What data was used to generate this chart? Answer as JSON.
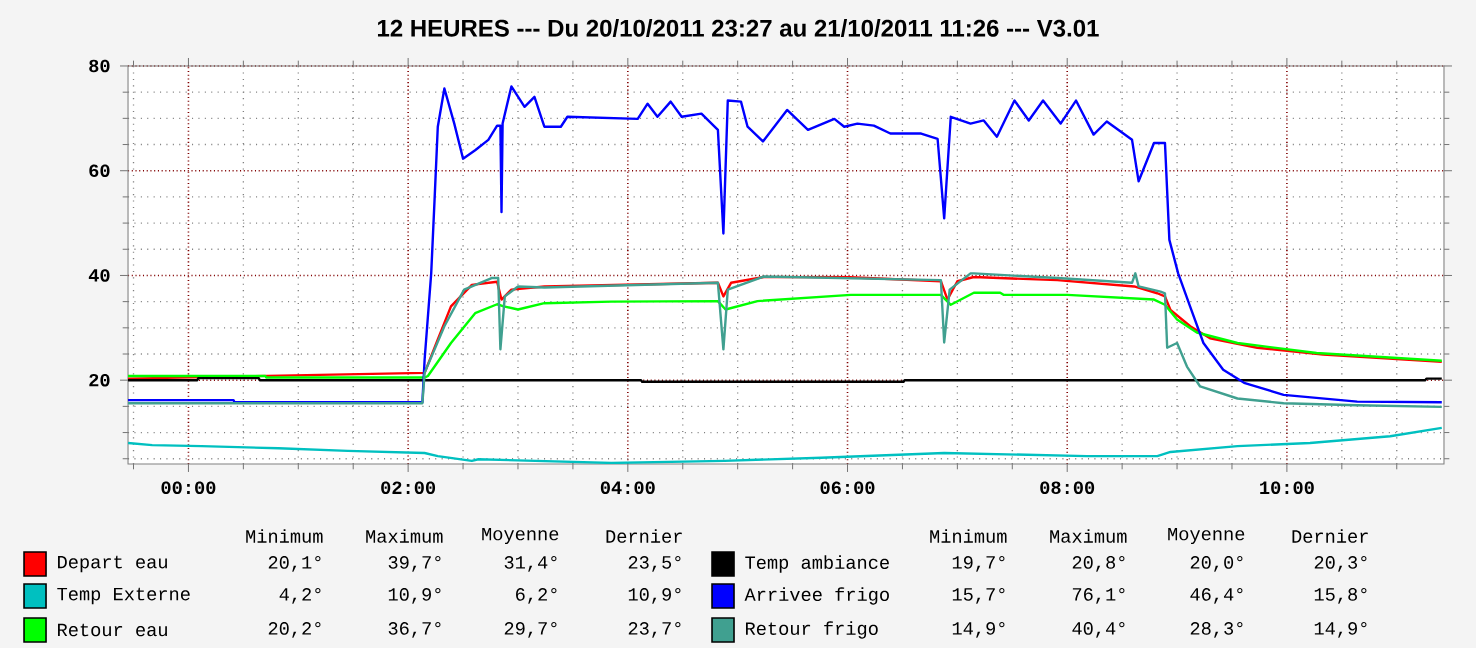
{
  "chart_data": {
    "type": "line",
    "title": "12 HEURES --- Du 20/10/2011 23:27 au 21/10/2011 11:26 --- V3.01",
    "xlim": [
      -0.55,
      11.43
    ],
    "ylim": [
      4,
      80
    ],
    "xticks": [
      {
        "value": -0.5,
        "label": null
      },
      {
        "value": 0,
        "label": "00:00"
      },
      {
        "value": 0.5,
        "label": null
      },
      {
        "value": 1,
        "label": null
      },
      {
        "value": 1.5,
        "label": null
      },
      {
        "value": 2,
        "label": "02:00"
      },
      {
        "value": 2.5,
        "label": null
      },
      {
        "value": 3,
        "label": null
      },
      {
        "value": 3.5,
        "label": null
      },
      {
        "value": 4,
        "label": "04:00"
      },
      {
        "value": 4.5,
        "label": null
      },
      {
        "value": 5,
        "label": null
      },
      {
        "value": 5.5,
        "label": null
      },
      {
        "value": 6,
        "label": "06:00"
      },
      {
        "value": 6.5,
        "label": null
      },
      {
        "value": 7,
        "label": null
      },
      {
        "value": 7.5,
        "label": null
      },
      {
        "value": 8,
        "label": "08:00"
      },
      {
        "value": 8.5,
        "label": null
      },
      {
        "value": 9,
        "label": null
      },
      {
        "value": 9.5,
        "label": null
      },
      {
        "value": 10,
        "label": "10:00"
      },
      {
        "value": 10.5,
        "label": null
      },
      {
        "value": 11,
        "label": null
      }
    ],
    "yticks": [
      {
        "value": 5,
        "label": null
      },
      {
        "value": 10,
        "label": null
      },
      {
        "value": 15,
        "label": null
      },
      20,
      {
        "value": 25,
        "label": null
      },
      {
        "value": 30,
        "label": null
      },
      {
        "value": 35,
        "label": null
      },
      40,
      {
        "value": 45,
        "label": null
      },
      {
        "value": 50,
        "label": null
      },
      {
        "value": 55,
        "label": null
      },
      60,
      {
        "value": 65,
        "label": null
      },
      {
        "value": 70,
        "label": null
      },
      {
        "value": 75,
        "label": null
      },
      80
    ],
    "grid": true,
    "legend": "bottom",
    "line_style": "solid",
    "marker": "none",
    "series": [
      {
        "name": "Depart eau",
        "color": "#ff0000",
        "x": [
          -0.55,
          2.13,
          2.15,
          2.27,
          2.39,
          2.58,
          2.81,
          2.85,
          2.94,
          3.24,
          4.82,
          4.87,
          4.94,
          5.24,
          5.97,
          6.85,
          6.91,
          7.0,
          7.15,
          7.91,
          8.61,
          8.82,
          8.89,
          8.94,
          9.12,
          9.3,
          9.73,
          10.33,
          11.41
        ],
        "values": [
          20.3,
          null,
          21.4,
          27.8,
          34.1,
          38.2,
          38.8,
          35.4,
          37.3,
          37.9,
          38.6,
          36.0,
          38.6,
          39.7,
          39.7,
          38.9,
          35.4,
          38.9,
          39.7,
          39.1,
          37.9,
          36.6,
          36.0,
          33.4,
          30.3,
          28.0,
          26.2,
          24.9,
          23.5
        ]
      },
      {
        "name": "Temp Externe",
        "color": "#00c0c0",
        "x": [
          -0.55,
          -0.33,
          0.12,
          0.82,
          1.45,
          2.15,
          2.27,
          2.58,
          2.64,
          3.85,
          4.88,
          5.76,
          6.88,
          8.18,
          8.82,
          8.94,
          9.55,
          10.21,
          10.94,
          11.41
        ],
        "values": [
          8.0,
          7.6,
          7.4,
          7.0,
          6.5,
          6.1,
          5.5,
          4.6,
          4.9,
          4.2,
          4.6,
          5.2,
          6.1,
          5.5,
          5.5,
          6.3,
          7.4,
          8.0,
          9.3,
          10.9
        ]
      },
      {
        "name": "Retour eau",
        "color": "#00ff00",
        "x": [
          -0.55,
          0.7,
          0.71,
          2.15,
          2.18,
          2.39,
          2.61,
          2.81,
          2.87,
          3.0,
          3.24,
          3.85,
          4.82,
          4.89,
          5.18,
          6.03,
          6.85,
          6.94,
          7.15,
          7.39,
          7.42,
          8.0,
          8.79,
          8.89,
          9.0,
          9.18,
          9.55,
          10.27,
          11.41
        ],
        "values": [
          20.8,
          20.8,
          20.5,
          20.5,
          20.8,
          27.1,
          32.8,
          34.5,
          34.1,
          33.5,
          34.7,
          35.0,
          35.1,
          33.5,
          35.1,
          36.3,
          36.3,
          34.4,
          36.7,
          36.7,
          36.3,
          36.3,
          35.4,
          34.4,
          31.6,
          29.1,
          27.1,
          25.2,
          23.7
        ]
      },
      {
        "name": "Temp ambiance",
        "color": "#000000",
        "x": [
          -0.55,
          0.08,
          0.09,
          0.64,
          0.65,
          4.12,
          4.13,
          6.51,
          6.52,
          11.26,
          11.27,
          11.41
        ],
        "values": [
          20.0,
          20.0,
          20.4,
          20.4,
          20.0,
          20.0,
          19.7,
          19.7,
          20.0,
          20.0,
          20.3,
          20.3
        ]
      },
      {
        "name": "Arrivee frigo",
        "color": "#0000ff",
        "x": [
          -0.55,
          0.41,
          0.42,
          2.13,
          2.15,
          2.21,
          2.24,
          2.27,
          2.33,
          2.42,
          2.5,
          2.61,
          2.73,
          2.81,
          2.84,
          2.85,
          2.86,
          2.94,
          3.06,
          3.15,
          3.24,
          3.39,
          3.45,
          4.09,
          4.18,
          4.27,
          4.39,
          4.49,
          4.67,
          4.82,
          4.87,
          4.91,
          5.03,
          5.09,
          5.23,
          5.45,
          5.64,
          5.88,
          5.97,
          6.09,
          6.24,
          6.39,
          6.67,
          6.82,
          6.88,
          6.94,
          7.12,
          7.24,
          7.36,
          7.52,
          7.65,
          7.78,
          7.94,
          8.08,
          8.24,
          8.36,
          8.59,
          8.65,
          8.79,
          8.89,
          8.93,
          9.01,
          9.12,
          9.24,
          9.42,
          9.61,
          9.97,
          10.64,
          11.41
        ],
        "values": [
          16.2,
          16.2,
          15.8,
          15.8,
          23.9,
          40.4,
          54.2,
          68.4,
          75.7,
          69.0,
          62.3,
          63.9,
          65.9,
          68.6,
          68.6,
          52.1,
          69.0,
          76.1,
          72.2,
          74.1,
          68.4,
          68.4,
          70.3,
          69.9,
          72.8,
          70.3,
          73.2,
          70.3,
          70.9,
          67.8,
          48.0,
          73.4,
          73.2,
          68.4,
          65.6,
          71.6,
          67.8,
          69.9,
          68.4,
          69.0,
          68.6,
          67.1,
          67.1,
          66.1,
          50.9,
          70.3,
          69.0,
          69.6,
          66.5,
          73.4,
          69.6,
          73.4,
          69.0,
          73.4,
          66.9,
          69.4,
          65.9,
          58.0,
          65.3,
          65.3,
          46.8,
          40.4,
          34.0,
          27.1,
          22.0,
          19.5,
          17.2,
          15.9,
          15.8
        ]
      },
      {
        "name": "Retour frigo",
        "color": "#40a090",
        "x": [
          -0.55,
          2.13,
          2.15,
          2.33,
          2.51,
          2.76,
          2.82,
          2.84,
          2.88,
          3.0,
          3.24,
          4.82,
          4.87,
          4.91,
          5.24,
          6.85,
          6.88,
          6.93,
          7.12,
          7.15,
          7.91,
          8.59,
          8.62,
          8.65,
          8.85,
          8.89,
          8.91,
          9.0,
          9.09,
          9.21,
          9.55,
          9.97,
          10.64,
          11.41
        ],
        "values": [
          15.6,
          15.6,
          21.4,
          30.3,
          37.3,
          39.5,
          39.5,
          25.9,
          36.0,
          37.9,
          37.7,
          38.6,
          25.9,
          37.3,
          39.8,
          39.1,
          27.2,
          37.3,
          40.4,
          40.4,
          39.5,
          38.6,
          40.4,
          37.9,
          36.9,
          36.6,
          26.2,
          27.1,
          22.6,
          18.8,
          16.5,
          15.6,
          15.2,
          14.9
        ]
      }
    ],
    "annotations": [
      "Minimum",
      "Maximum",
      "Moyenne",
      "Dernier",
      "20,1°",
      "39,7°",
      "31,4°",
      "23,5°",
      "4,2°",
      "10,9°",
      "6,2°",
      "10,9°",
      "20,2°",
      "36,7°",
      "29,7°",
      "23,7°",
      "Minimum",
      "Maximum",
      "Moyenne",
      "Dernier",
      "19,7°",
      "20,8°",
      "20,0°",
      "20,3°",
      "15,7°",
      "76,1°",
      "46,4°",
      "15,8°",
      "14,9°",
      "40,4°",
      "28,3°",
      "14,9°"
    ]
  }
}
